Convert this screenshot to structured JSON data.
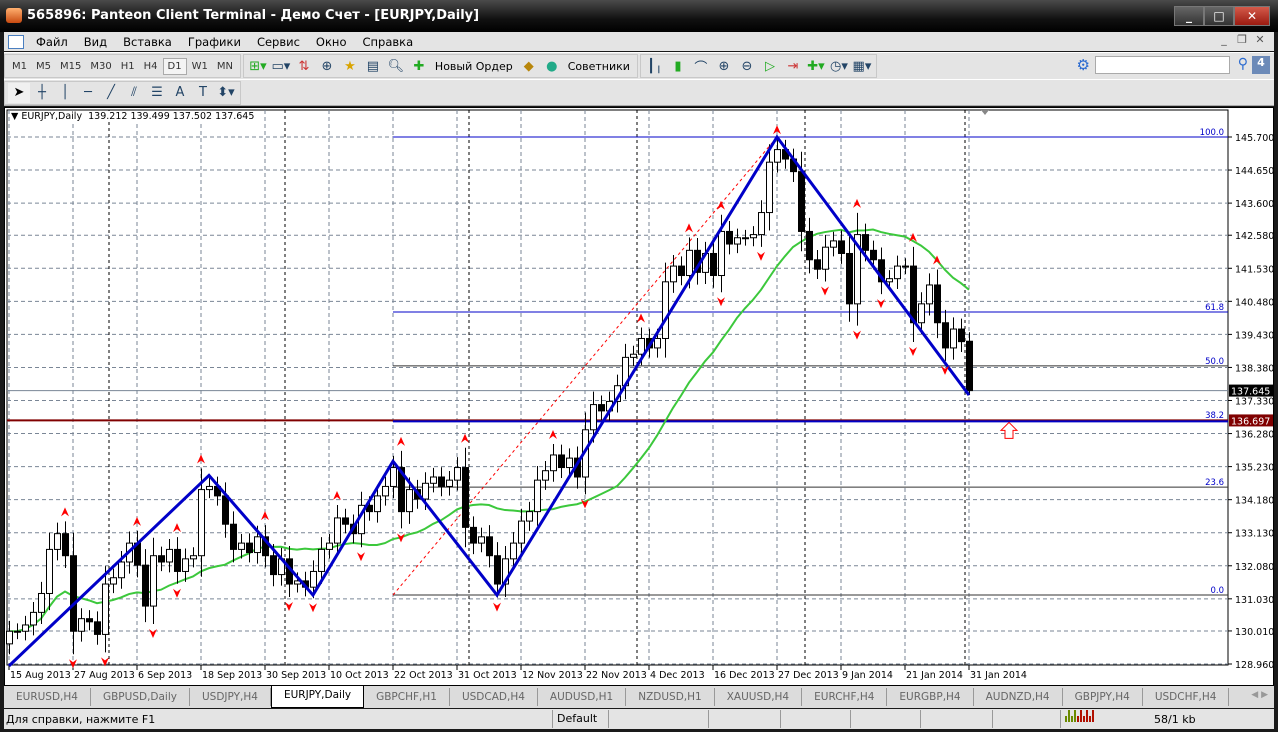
{
  "window": {
    "title": "565896: Panteon Client Terminal - Демо Счет - [EURJPY,Daily]"
  },
  "menu": {
    "items": [
      "Файл",
      "Вид",
      "Вставка",
      "Графики",
      "Сервис",
      "Окно",
      "Справка"
    ]
  },
  "toolbar": {
    "timeframes": [
      "M1",
      "M5",
      "M15",
      "M30",
      "H1",
      "H4",
      "D1",
      "W1",
      "MN"
    ],
    "selected_timeframe": "D1",
    "new_order_label": "Новый Ордер",
    "experts_label": "Советники",
    "search_value": "",
    "notification_count": "4"
  },
  "chart": {
    "symbol_label": "EURJPY,Daily",
    "ohlc": {
      "open": "139.212",
      "high": "139.499",
      "low": "137.502",
      "close": "137.645"
    },
    "colors": {
      "zigzag": "#0000c8",
      "ma": "#3cc83c",
      "fractal": "#ff0000",
      "support_line": "#800000",
      "fib": "#0000c8",
      "bid_label": "#000000"
    }
  },
  "chart_data": {
    "type": "candlestick",
    "symbol": "EURJPY",
    "period": "Daily",
    "ylim": [
      128.96,
      145.7
    ],
    "yticks": [
      "145.700",
      "144.650",
      "143.600",
      "142.580",
      "141.530",
      "140.480",
      "139.430",
      "138.380",
      "137.330",
      "136.280",
      "135.230",
      "134.180",
      "133.130",
      "132.080",
      "131.030",
      "130.010",
      "128.960"
    ],
    "xticks": [
      "15 Aug 2013",
      "27 Aug 2013",
      "6 Sep 2013",
      "18 Sep 2013",
      "30 Sep 2013",
      "10 Oct 2013",
      "22 Oct 2013",
      "31 Oct 2013",
      "12 Nov 2013",
      "22 Nov 2013",
      "4 Dec 2013",
      "16 Dec 2013",
      "27 Dec 2013",
      "9 Jan 2014",
      "21 Jan 2014",
      "31 Jan 2014"
    ],
    "closes": [
      130.0,
      130.0,
      130.2,
      130.6,
      131.2,
      132.6,
      133.1,
      132.4,
      130.0,
      130.4,
      130.3,
      129.9,
      131.5,
      131.7,
      132.2,
      132.8,
      132.1,
      130.8,
      132.4,
      132.2,
      132.6,
      131.9,
      132.3,
      132.4,
      134.5,
      134.6,
      134.3,
      133.4,
      132.6,
      132.8,
      132.5,
      133.0,
      132.4,
      131.8,
      132.3,
      131.5,
      131.6,
      131.4,
      131.9,
      132.6,
      132.8,
      133.6,
      133.4,
      133.1,
      134.0,
      133.8,
      134.3,
      134.6,
      135.2,
      133.8,
      134.5,
      134.2,
      134.7,
      134.9,
      134.6,
      134.8,
      135.2,
      133.3,
      132.8,
      133.0,
      132.4,
      131.5,
      132.3,
      132.8,
      133.5,
      133.8,
      134.8,
      135.1,
      135.6,
      135.2,
      135.5,
      134.9,
      136.4,
      137.2,
      137.0,
      137.3,
      137.8,
      138.7,
      138.8,
      139.3,
      139.0,
      139.3,
      141.1,
      141.6,
      141.3,
      142.1,
      141.4,
      142.0,
      141.3,
      142.7,
      142.3,
      142.5,
      142.5,
      142.6,
      143.3,
      144.9,
      145.3,
      145.0,
      144.6,
      142.7,
      141.8,
      141.5,
      142.2,
      142.4,
      142.0,
      140.4,
      142.6,
      142.1,
      141.8,
      141.1,
      141.2,
      141.6,
      141.6,
      139.8,
      140.4,
      141.0,
      139.8,
      139.0,
      139.6,
      139.2,
      137.645
    ],
    "zigzag": [
      {
        "bar": 0,
        "price": 128.9
      },
      {
        "bar": 25,
        "price": 134.95
      },
      {
        "bar": 38,
        "price": 131.15
      },
      {
        "bar": 48,
        "price": 135.4
      },
      {
        "bar": 61,
        "price": 131.15
      },
      {
        "bar": 96,
        "price": 145.7
      },
      {
        "bar": 120,
        "price": 137.5
      }
    ],
    "fibonacci": {
      "from_bar": 48,
      "low": 131.15,
      "high": 145.7,
      "levels": [
        {
          "label": "0.0",
          "price": 131.15
        },
        {
          "label": "23.6",
          "price": 134.58
        },
        {
          "label": "38.2",
          "price": 136.71
        },
        {
          "label": "50.0",
          "price": 138.43
        },
        {
          "label": "61.8",
          "price": 140.14
        },
        {
          "label": "100.0",
          "price": 145.7
        }
      ]
    },
    "support_line": {
      "price": 136.697,
      "label": "136.697"
    },
    "bid_line": {
      "price": 137.645,
      "label": "137.645"
    }
  },
  "tabs": [
    "EURUSD,H4",
    "GBPUSD,Daily",
    "USDJPY,H4",
    "EURJPY,Daily",
    "GBPCHF,H1",
    "USDCAD,H4",
    "AUDUSD,H1",
    "NZDUSD,H1",
    "XAUUSD,H4",
    "EURCHF,H4",
    "EURGBP,H4",
    "AUDNZD,H4",
    "GBPJPY,H4",
    "USDCHF,H4"
  ],
  "active_tab": "EURJPY,Daily",
  "status": {
    "help": "Для справки, нажмите F1",
    "profile": "Default",
    "traffic": "58/1 kb"
  }
}
